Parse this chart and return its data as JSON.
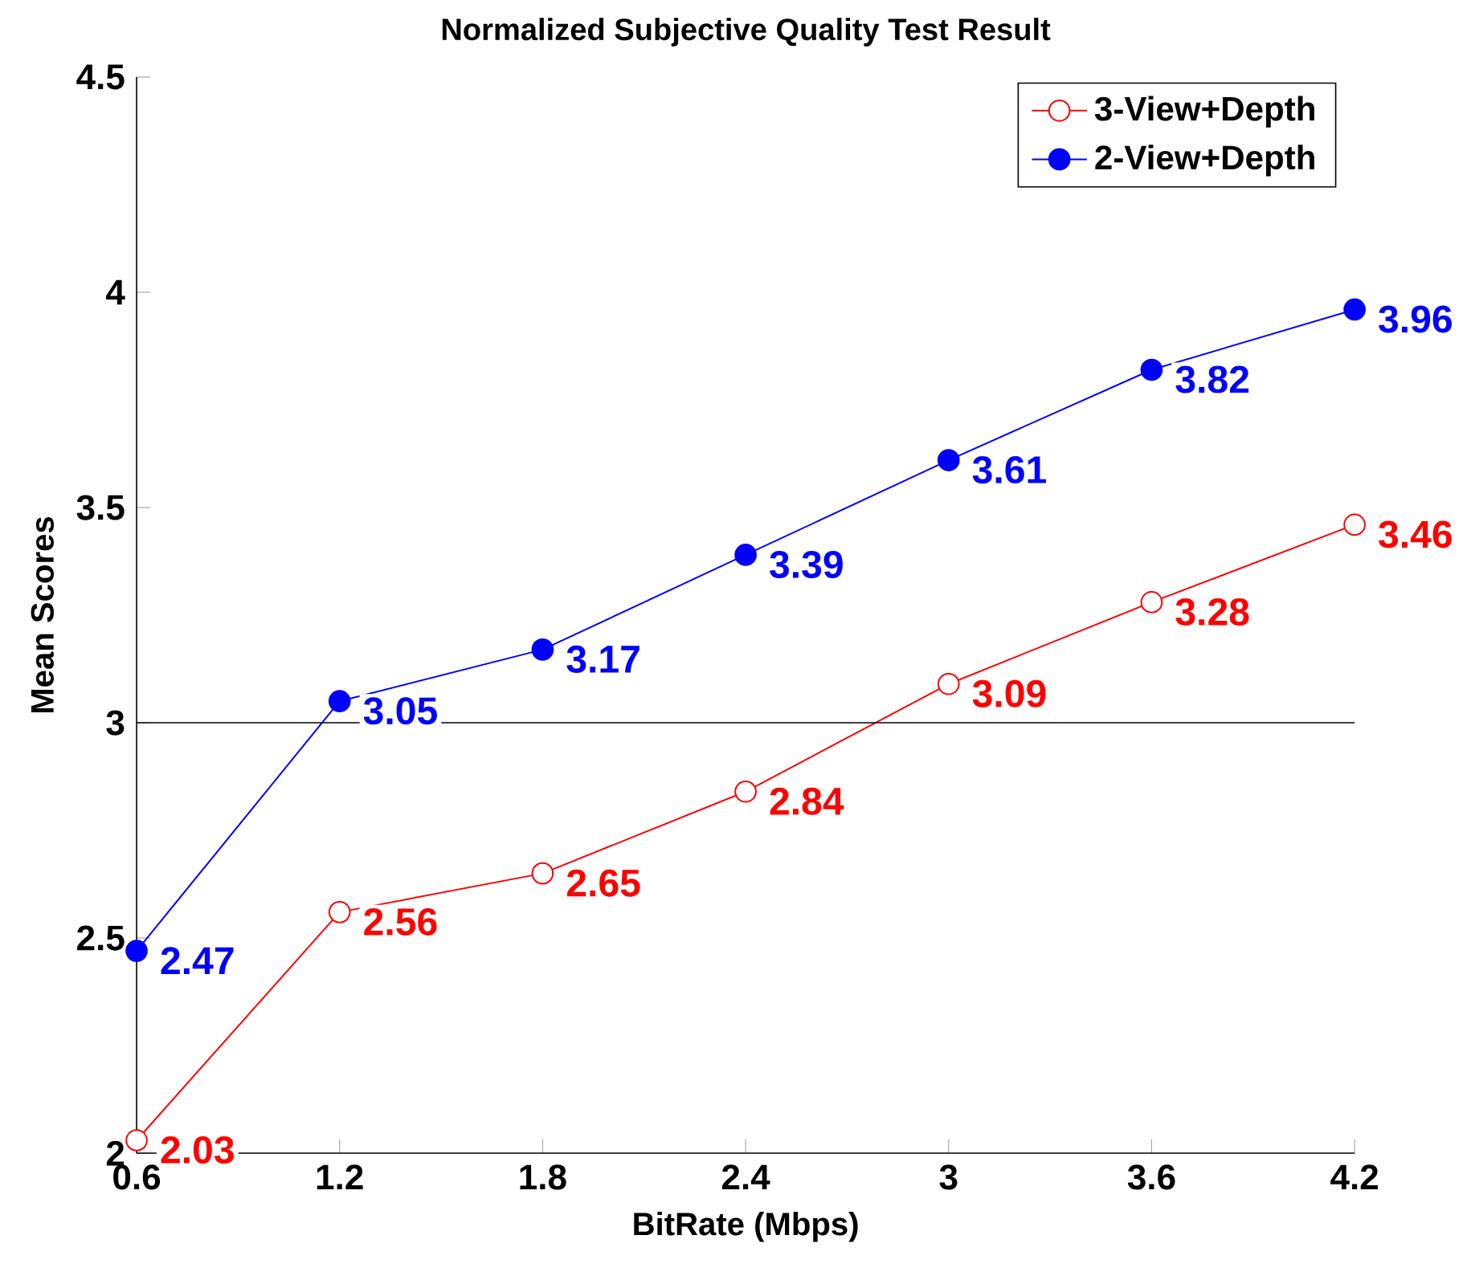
{
  "chart_data": {
    "type": "line",
    "title": "Normalized Subjective Quality Test Result",
    "xlabel": "BitRate (Mbps)",
    "ylabel": "Mean Scores",
    "x": [
      0.6,
      1.2,
      1.8,
      2.4,
      3,
      3.6,
      4.2
    ],
    "series": [
      {
        "name": "3-View+Depth",
        "color": "#ff0000",
        "values": [
          2.03,
          2.56,
          2.65,
          2.84,
          3.09,
          3.28,
          3.46
        ]
      },
      {
        "name": "2-View+Depth",
        "color": "#0000ff",
        "values": [
          2.47,
          3.05,
          3.17,
          3.39,
          3.61,
          3.82,
          3.96
        ]
      }
    ],
    "xlim": [
      0.6,
      4.2
    ],
    "xticks": [
      0.6,
      1.2,
      1.8,
      2.4,
      3,
      3.6,
      4.2
    ],
    "ylim": [
      2,
      4.5
    ],
    "yticks": [
      2,
      2.5,
      3,
      3.5,
      4,
      4.5
    ],
    "ref_lines": [
      {
        "axis": "y",
        "value": 3,
        "color": "#000000"
      }
    ],
    "data_labels": true,
    "legend": "top right",
    "grid": false,
    "marker": "circle",
    "line_style": "solid"
  }
}
